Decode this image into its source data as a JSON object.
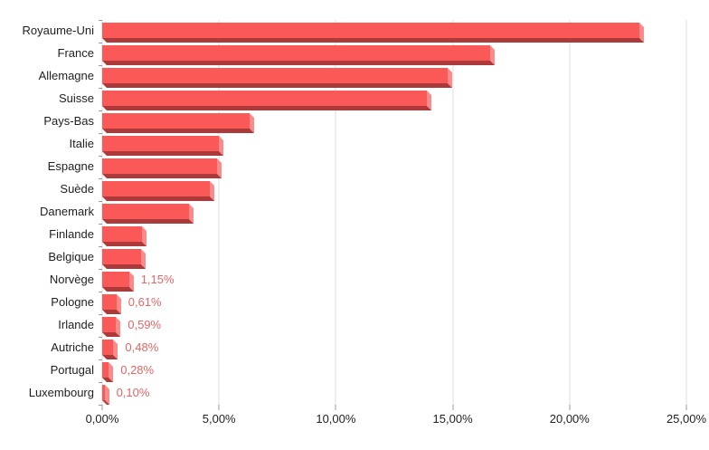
{
  "colors": {
    "background": "#ffffff",
    "bar_face": "#fb5858",
    "bar_side": "#fb8a8a",
    "bar_bottom": "#ad3a3a",
    "gridline": "#dcdcdc",
    "tick": "#9a9a9a",
    "axis_text": "#1f1f1f",
    "value_label_text": "#e66565"
  },
  "chart_data": {
    "type": "bar",
    "orientation": "horizontal",
    "title": "",
    "xlabel": "",
    "ylabel": "",
    "grid": true,
    "legend": "none",
    "xlim": [
      0,
      25
    ],
    "categories": [
      "Royaume-Uni",
      "France",
      "Allemagne",
      "Suisse",
      "Pays-Bas",
      "Italie",
      "Espagne",
      "Suède",
      "Danemark",
      "Finlande",
      "Belgique",
      "Norvège",
      "Pologne",
      "Irlande",
      "Autriche",
      "Portugal",
      "Luxembourg"
    ],
    "values": [
      23.0,
      16.6,
      14.8,
      13.9,
      6.3,
      5.0,
      4.9,
      4.6,
      3.7,
      1.7,
      1.66,
      1.15,
      0.61,
      0.59,
      0.48,
      0.28,
      0.1
    ],
    "data_labels": [
      null,
      null,
      null,
      null,
      null,
      null,
      null,
      null,
      null,
      null,
      null,
      "1,15%",
      "0,61%",
      "0,59%",
      "0,48%",
      "0,28%",
      "0,10%"
    ],
    "x_ticks": [
      {
        "value": 0,
        "label": "0,00%"
      },
      {
        "value": 5,
        "label": "5,00%"
      },
      {
        "value": 10,
        "label": "10,00%"
      },
      {
        "value": 15,
        "label": "15,00%"
      },
      {
        "value": 20,
        "label": "20,00%"
      },
      {
        "value": 25,
        "label": "25,00%"
      }
    ]
  }
}
